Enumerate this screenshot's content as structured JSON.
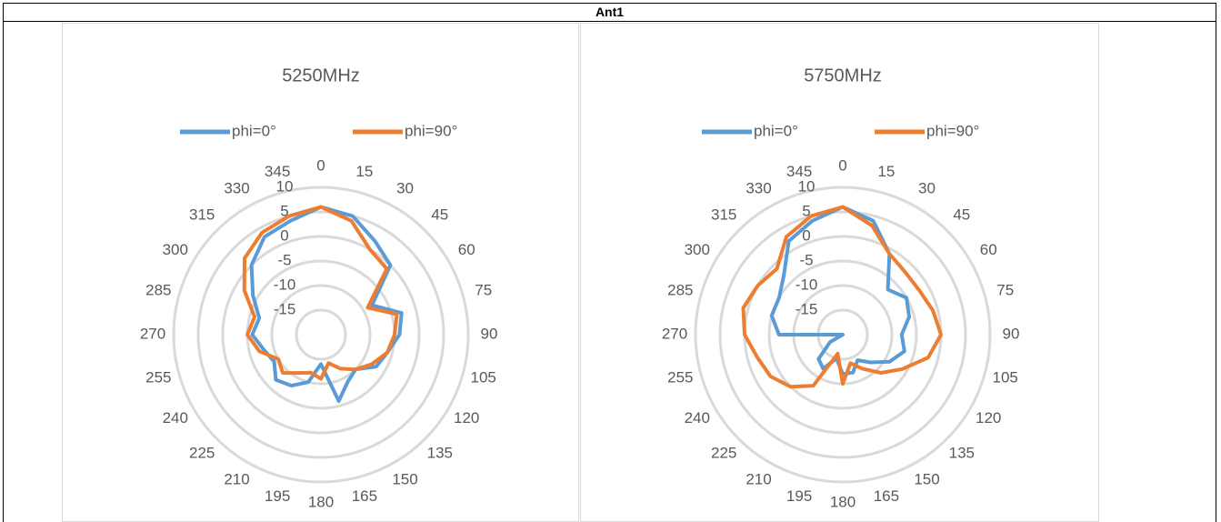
{
  "header": "Ant1",
  "chart_data": [
    {
      "type": "radar",
      "title": "5250MHz",
      "categories": [
        "0",
        "15",
        "30",
        "45",
        "60",
        "75",
        "90",
        "105",
        "120",
        "135",
        "150",
        "165",
        "180",
        "195",
        "210",
        "225",
        "240",
        "255",
        "270",
        "285",
        "300",
        "315",
        "330",
        "345"
      ],
      "series": [
        {
          "name": "phi=0°",
          "color": "#5b9bd5",
          "values": [
            6,
            5,
            2,
            0,
            -8,
            -3,
            -4,
            -6,
            -7,
            -10,
            -9,
            -6,
            -14,
            -10,
            -8,
            -7,
            -9,
            -8,
            -6,
            -7,
            -4,
            0,
            3,
            4
          ]
        },
        {
          "name": "phi=90°",
          "color": "#ed7d31",
          "values": [
            6,
            4,
            0,
            -1,
            -9,
            -4,
            -5,
            -6,
            -8,
            -10,
            -12,
            -14,
            -11,
            -12,
            -11,
            -9,
            -10,
            -7,
            -5,
            -6,
            -2,
            2,
            4,
            5
          ]
        }
      ],
      "ylim": [
        -20,
        10
      ],
      "yticks": [
        -15,
        -10,
        -5,
        0,
        5,
        10
      ],
      "grid": true,
      "legend": "top"
    },
    {
      "type": "radar",
      "title": "5750MHz",
      "categories": [
        "0",
        "15",
        "30",
        "45",
        "60",
        "75",
        "90",
        "105",
        "120",
        "135",
        "150",
        "165",
        "180",
        "195",
        "210",
        "225",
        "240",
        "255",
        "270",
        "285",
        "300",
        "315",
        "330",
        "345"
      ],
      "series": [
        {
          "name": "phi=0°",
          "color": "#5b9bd5",
          "values": [
            6,
            4,
            -1,
            -7,
            -5,
            -6,
            -8,
            -7,
            -9,
            -12,
            -14,
            -12,
            -12,
            -15,
            -12,
            -13,
            -17,
            -20,
            -7,
            -5,
            -5,
            -3,
            2,
            4
          ]
        },
        {
          "name": "phi=90°",
          "color": "#ed7d31",
          "values": [
            6,
            3,
            -1,
            -2,
            -2,
            -1,
            0,
            -2,
            -6,
            -9,
            -12,
            -14,
            -10,
            -16,
            -8,
            -5,
            -3,
            -2,
            0,
            1,
            0,
            -1,
            3,
            5
          ]
        }
      ],
      "ylim": [
        -20,
        10
      ],
      "yticks": [
        -15,
        -10,
        -5,
        0,
        5,
        10
      ],
      "grid": true,
      "legend": "top"
    }
  ]
}
